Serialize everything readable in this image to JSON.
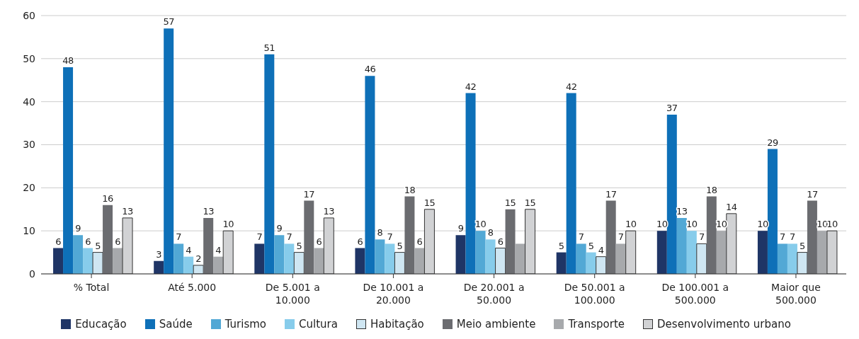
{
  "chart_data": {
    "type": "bar",
    "categories": [
      "% Total",
      "Até 5.000",
      "De 5.001 a\n10.000",
      "De 10.001 a\n20.000",
      "De 20.001 a\n50.000",
      "De 50.001 a\n100.000",
      "De 100.001 a\n500.000",
      "Maior que\n500.000"
    ],
    "ylim": [
      0,
      60
    ],
    "yticks": [
      0,
      10,
      20,
      30,
      40,
      50,
      60
    ],
    "grid": "y",
    "legend": "bottom",
    "series": [
      {
        "name": "Educação",
        "color": "#1f3566",
        "values": [
          6,
          3,
          7,
          6,
          9,
          5,
          10,
          10
        ],
        "value_labels": [
          "6",
          "3",
          "7",
          "6",
          "9",
          "5",
          "10",
          "10"
        ]
      },
      {
        "name": "Saúde",
        "color": "#0e70b8",
        "values": [
          48,
          57,
          51,
          46,
          42,
          42,
          37,
          29
        ],
        "value_labels": [
          "48",
          "57",
          "51",
          "46",
          "42",
          "42",
          "37",
          "29"
        ]
      },
      {
        "name": "Turismo",
        "color": "#52a8d5",
        "values": [
          9,
          7,
          9,
          8,
          10,
          7,
          13,
          7
        ],
        "value_labels": [
          "9",
          "7",
          "9",
          "8",
          "10",
          "7",
          "13",
          "7"
        ]
      },
      {
        "name": "Cultura",
        "color": "#87cceb",
        "values": [
          6,
          4,
          7,
          7,
          8,
          5,
          10,
          7
        ],
        "value_labels": [
          "6",
          "4",
          "7",
          "7",
          "8",
          "5",
          "10",
          "7"
        ]
      },
      {
        "name": "Habitação",
        "color": "#cfe6f2",
        "values": [
          5,
          2,
          5,
          5,
          6,
          4,
          7,
          5
        ],
        "value_labels": [
          "5",
          "2",
          "5",
          "5",
          "6",
          "4",
          "7",
          "5"
        ]
      },
      {
        "name": "Meio ambiente",
        "color": "#6b6c70",
        "values": [
          16,
          13,
          17,
          18,
          15,
          17,
          18,
          17
        ],
        "value_labels": [
          "16",
          "13",
          "17",
          "18",
          "15",
          "17",
          "18",
          "17"
        ]
      },
      {
        "name": "Transporte",
        "color": "#a7a9ac",
        "values": [
          6,
          4,
          6,
          6,
          7,
          7,
          10,
          10
        ],
        "value_labels": [
          "6",
          "4",
          "6",
          "6",
          null,
          "7",
          "10",
          "10"
        ]
      },
      {
        "name": "Desenvolvimento urbano",
        "color": "#d1d2d4",
        "values": [
          13,
          10,
          13,
          15,
          15,
          10,
          14,
          10
        ],
        "value_labels": [
          "13",
          "10",
          "13",
          "15",
          "15",
          "10",
          "14",
          "10"
        ]
      }
    ]
  }
}
